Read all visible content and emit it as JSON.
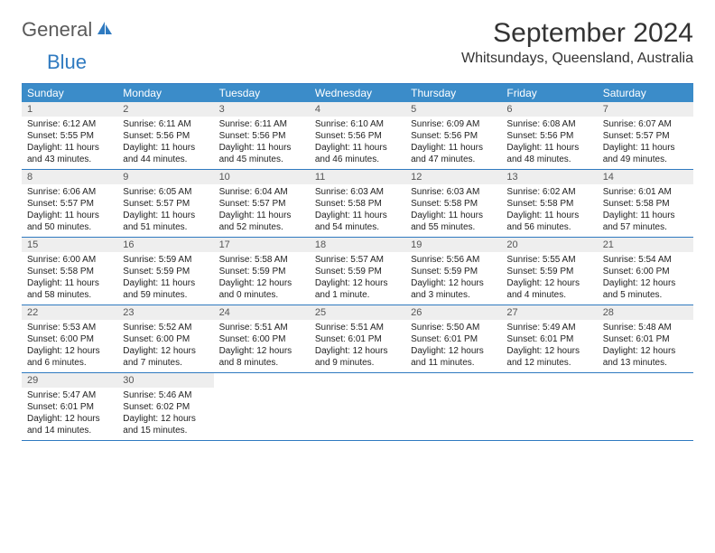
{
  "logo": {
    "part1": "General",
    "part2": "Blue"
  },
  "title": "September 2024",
  "location": "Whitsundays, Queensland, Australia",
  "header_bg": "#3b8cc9",
  "border_color": "#2f7ac0",
  "daynum_bg": "#eeeeee",
  "text_color": "#222222",
  "day_names": [
    "Sunday",
    "Monday",
    "Tuesday",
    "Wednesday",
    "Thursday",
    "Friday",
    "Saturday"
  ],
  "weeks": [
    [
      {
        "n": "1",
        "sr": "6:12 AM",
        "ss": "5:55 PM",
        "dl": "11 hours and 43 minutes."
      },
      {
        "n": "2",
        "sr": "6:11 AM",
        "ss": "5:56 PM",
        "dl": "11 hours and 44 minutes."
      },
      {
        "n": "3",
        "sr": "6:11 AM",
        "ss": "5:56 PM",
        "dl": "11 hours and 45 minutes."
      },
      {
        "n": "4",
        "sr": "6:10 AM",
        "ss": "5:56 PM",
        "dl": "11 hours and 46 minutes."
      },
      {
        "n": "5",
        "sr": "6:09 AM",
        "ss": "5:56 PM",
        "dl": "11 hours and 47 minutes."
      },
      {
        "n": "6",
        "sr": "6:08 AM",
        "ss": "5:56 PM",
        "dl": "11 hours and 48 minutes."
      },
      {
        "n": "7",
        "sr": "6:07 AM",
        "ss": "5:57 PM",
        "dl": "11 hours and 49 minutes."
      }
    ],
    [
      {
        "n": "8",
        "sr": "6:06 AM",
        "ss": "5:57 PM",
        "dl": "11 hours and 50 minutes."
      },
      {
        "n": "9",
        "sr": "6:05 AM",
        "ss": "5:57 PM",
        "dl": "11 hours and 51 minutes."
      },
      {
        "n": "10",
        "sr": "6:04 AM",
        "ss": "5:57 PM",
        "dl": "11 hours and 52 minutes."
      },
      {
        "n": "11",
        "sr": "6:03 AM",
        "ss": "5:58 PM",
        "dl": "11 hours and 54 minutes."
      },
      {
        "n": "12",
        "sr": "6:03 AM",
        "ss": "5:58 PM",
        "dl": "11 hours and 55 minutes."
      },
      {
        "n": "13",
        "sr": "6:02 AM",
        "ss": "5:58 PM",
        "dl": "11 hours and 56 minutes."
      },
      {
        "n": "14",
        "sr": "6:01 AM",
        "ss": "5:58 PM",
        "dl": "11 hours and 57 minutes."
      }
    ],
    [
      {
        "n": "15",
        "sr": "6:00 AM",
        "ss": "5:58 PM",
        "dl": "11 hours and 58 minutes."
      },
      {
        "n": "16",
        "sr": "5:59 AM",
        "ss": "5:59 PM",
        "dl": "11 hours and 59 minutes."
      },
      {
        "n": "17",
        "sr": "5:58 AM",
        "ss": "5:59 PM",
        "dl": "12 hours and 0 minutes."
      },
      {
        "n": "18",
        "sr": "5:57 AM",
        "ss": "5:59 PM",
        "dl": "12 hours and 1 minute."
      },
      {
        "n": "19",
        "sr": "5:56 AM",
        "ss": "5:59 PM",
        "dl": "12 hours and 3 minutes."
      },
      {
        "n": "20",
        "sr": "5:55 AM",
        "ss": "5:59 PM",
        "dl": "12 hours and 4 minutes."
      },
      {
        "n": "21",
        "sr": "5:54 AM",
        "ss": "6:00 PM",
        "dl": "12 hours and 5 minutes."
      }
    ],
    [
      {
        "n": "22",
        "sr": "5:53 AM",
        "ss": "6:00 PM",
        "dl": "12 hours and 6 minutes."
      },
      {
        "n": "23",
        "sr": "5:52 AM",
        "ss": "6:00 PM",
        "dl": "12 hours and 7 minutes."
      },
      {
        "n": "24",
        "sr": "5:51 AM",
        "ss": "6:00 PM",
        "dl": "12 hours and 8 minutes."
      },
      {
        "n": "25",
        "sr": "5:51 AM",
        "ss": "6:01 PM",
        "dl": "12 hours and 9 minutes."
      },
      {
        "n": "26",
        "sr": "5:50 AM",
        "ss": "6:01 PM",
        "dl": "12 hours and 11 minutes."
      },
      {
        "n": "27",
        "sr": "5:49 AM",
        "ss": "6:01 PM",
        "dl": "12 hours and 12 minutes."
      },
      {
        "n": "28",
        "sr": "5:48 AM",
        "ss": "6:01 PM",
        "dl": "12 hours and 13 minutes."
      }
    ],
    [
      {
        "n": "29",
        "sr": "5:47 AM",
        "ss": "6:01 PM",
        "dl": "12 hours and 14 minutes."
      },
      {
        "n": "30",
        "sr": "5:46 AM",
        "ss": "6:02 PM",
        "dl": "12 hours and 15 minutes."
      },
      null,
      null,
      null,
      null,
      null
    ]
  ],
  "labels": {
    "sunrise": "Sunrise: ",
    "sunset": "Sunset: ",
    "daylight": "Daylight: "
  }
}
